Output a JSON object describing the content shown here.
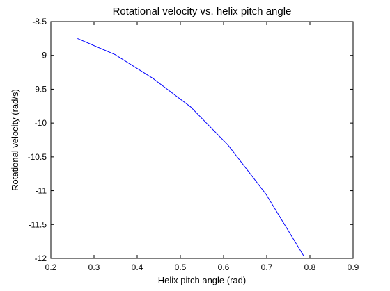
{
  "chart_data": {
    "type": "line",
    "title": "Rotational velocity vs. helix pitch angle",
    "xlabel": "Helix pitch angle (rad)",
    "ylabel": "Rotational velocity (rad/s)",
    "xlim": [
      0.2,
      0.9
    ],
    "ylim": [
      -12,
      -8.5
    ],
    "x_ticks": [
      0.2,
      0.3,
      0.4,
      0.5,
      0.6,
      0.7,
      0.8,
      0.9
    ],
    "y_ticks": [
      -12,
      -11.5,
      -11,
      -10.5,
      -10,
      -9.5,
      -9,
      -8.5
    ],
    "x_tick_labels": [
      "0.2",
      "0.3",
      "0.4",
      "0.5",
      "0.6",
      "0.7",
      "0.8",
      "0.9"
    ],
    "y_tick_labels": [
      "-12",
      "-11.5",
      "-11",
      "-10.5",
      "-10",
      "-9.5",
      "-9",
      "-8.5"
    ],
    "grid": false,
    "series": [
      {
        "color": "#0000ff",
        "x": [
          0.2618,
          0.3491,
          0.4363,
          0.5236,
          0.6109,
          0.6981,
          0.7854
        ],
        "y": [
          -8.75,
          -8.99,
          -9.34,
          -9.76,
          -10.33,
          -11.05,
          -11.96
        ]
      }
    ]
  }
}
